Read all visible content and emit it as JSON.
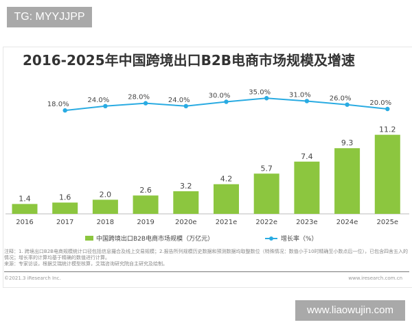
{
  "watermark_top": "TG: MYYJJPP",
  "watermark_bottom": "www.liaowujin.com",
  "chart_data": {
    "type": "bar",
    "title": "2016-2025年中国跨境出口B2B电商市场规模及增速",
    "categories": [
      "2016",
      "2017",
      "2018",
      "2019",
      "2020e",
      "2021e",
      "2022e",
      "2023e",
      "2024e",
      "2025e"
    ],
    "series": [
      {
        "name": "中国跨境出口B2B电商市场规模（万亿元）",
        "type": "bar",
        "color": "#8cc63f",
        "values": [
          1.4,
          1.6,
          2.0,
          2.6,
          3.2,
          4.2,
          5.7,
          7.4,
          9.3,
          11.2
        ],
        "labels": [
          "1.4",
          "1.6",
          "2.0",
          "2.6",
          "3.2",
          "4.2",
          "5.7",
          "7.4",
          "9.3",
          "11.2"
        ]
      },
      {
        "name": "增长率（%）",
        "type": "line",
        "color": "#29abe2",
        "values": [
          null,
          18.0,
          24.0,
          28.0,
          24.0,
          30.0,
          35.0,
          31.0,
          26.0,
          20.0
        ],
        "labels": [
          "",
          "18.0%",
          "24.0%",
          "28.0%",
          "24.0%",
          "30.0%",
          "35.0%",
          "31.0%",
          "26.0%",
          "20.0%"
        ]
      }
    ],
    "legend": "bottom",
    "grid": false
  },
  "notes": "注释：1. 跨境出口B2B电商规模统计口径包括信息撮合及线上交易规模；2.报告所列规模历史数据和预测数据均取整数位（特殊情况：数值小于10时精确至小数点后一位），已包含四舍五入的情况；增长率的计算均基于精确的数值进行计算。",
  "source": "来源：专家访谈，根据艾瑞统计模型核算，艾瑞咨询研究院自主研究及绘制。",
  "copyright": "©2021.3 iResearch Inc.",
  "site": "www.iresearch.com.cn"
}
